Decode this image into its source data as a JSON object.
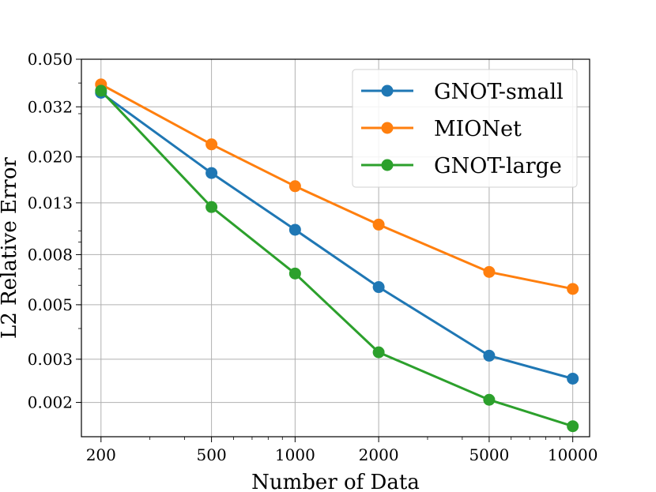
{
  "chart_data": {
    "type": "line",
    "title": "",
    "xlabel": "Number of Data",
    "ylabel": "L2 Relative Error",
    "x_scale": "log",
    "y_scale": "log",
    "x": [
      200,
      500,
      1000,
      2000,
      5000,
      10000
    ],
    "x_tick_labels": [
      "200",
      "500",
      "1000",
      "2000",
      "5000",
      "10000"
    ],
    "y_ticks": [
      0.002,
      0.003,
      0.005,
      0.008,
      0.013,
      0.02,
      0.032,
      0.05
    ],
    "y_tick_labels": [
      "0.002",
      "0.003",
      "0.005",
      "0.008",
      "0.013",
      "0.020",
      "0.032",
      "0.050"
    ],
    "xlim": [
      170,
      11500
    ],
    "ylim": [
      0.00145,
      0.05
    ],
    "grid": true,
    "legend_position": "top-right",
    "series": [
      {
        "name": "GNOT-small",
        "color": "#1f77b4",
        "values": [
          0.0365,
          0.0172,
          0.0101,
          0.0059,
          0.0031,
          0.0025
        ]
      },
      {
        "name": "MIONet",
        "color": "#ff7f0e",
        "values": [
          0.0395,
          0.0225,
          0.0152,
          0.0106,
          0.0068,
          0.0058
        ]
      },
      {
        "name": "GNOT-large",
        "color": "#2ca02c",
        "values": [
          0.0372,
          0.0125,
          0.0067,
          0.0032,
          0.00205,
          0.0016
        ]
      }
    ]
  }
}
